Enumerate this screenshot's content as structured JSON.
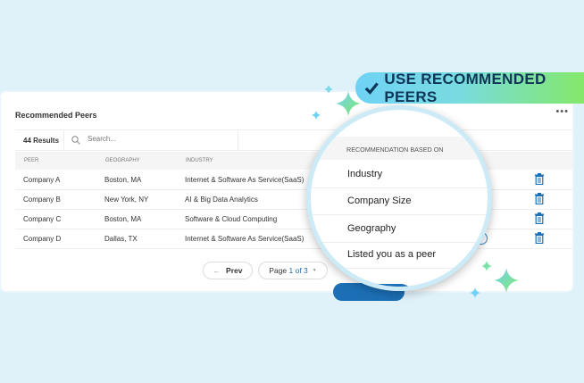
{
  "card": {
    "title": "Recommended Peers",
    "more_icon": "more-horizontal-icon"
  },
  "toolbar": {
    "results": "44 Results",
    "search_placeholder": "Search..."
  },
  "table": {
    "headers": [
      "PEER",
      "GEOGRAPHY",
      "INDUSTRY"
    ],
    "rows": [
      {
        "peer": "Company A",
        "geography": "Boston, MA",
        "industry": "Internet & Software As Service(SaaS)",
        "action": "Peer Group"
      },
      {
        "peer": "Company B",
        "geography": "New York, NY",
        "industry": "AI & Big Data Analytics",
        "action": "Peer Group"
      },
      {
        "peer": "Company C",
        "geography": "Boston, MA",
        "industry": "Software & Cloud Computing",
        "action": "Peer Group"
      },
      {
        "peer": "Company D",
        "geography": "Dallas, TX",
        "industry": "Internet & Software As Service(SaaS)",
        "action": "Peer Group"
      }
    ]
  },
  "pagination": {
    "prev": "Prev",
    "page_label": "Page",
    "page_current": "1 of 3"
  },
  "lens": {
    "header": "RECOMMENDATION BASED ON",
    "items": [
      "Industry",
      "Company Size",
      "Geography",
      "Listed you as a peer"
    ]
  },
  "badge": {
    "label": "USE RECOMMENDED PEERS",
    "icon": "checkmark-icon"
  },
  "colors": {
    "background": "#dff1f9",
    "accent": "#1c6fb5",
    "badge_start": "#6fd2f5",
    "badge_end": "#84e86a",
    "badge_text": "#0f3556"
  }
}
